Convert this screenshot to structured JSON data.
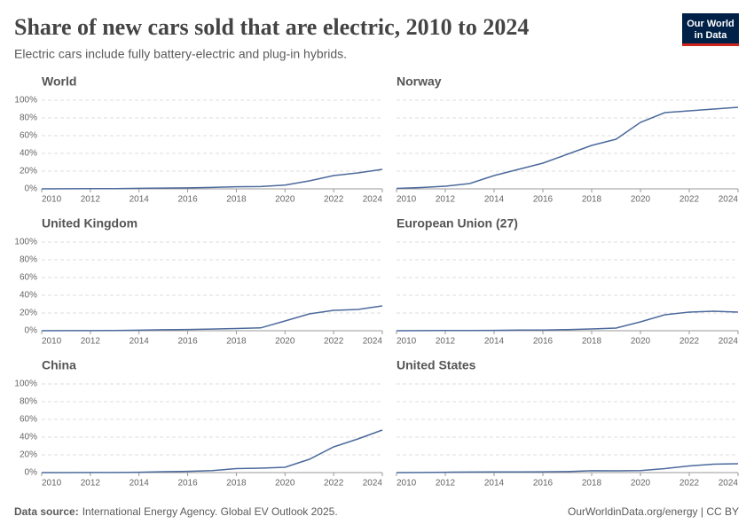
{
  "title": "Share of new cars sold that are electric, 2010 to 2024",
  "subtitle": "Electric cars include fully battery-electric and plug-in hybrids.",
  "logo": [
    "Our World",
    "in Data"
  ],
  "source_label": "Data source:",
  "source": "International Energy Agency. Global EV Outlook 2025.",
  "url": "OurWorldinData.org/energy | CC BY",
  "chart_data": [
    {
      "type": "line",
      "title": "World",
      "color": "#4c6a9c",
      "x": [
        2010,
        2011,
        2012,
        2013,
        2014,
        2015,
        2016,
        2017,
        2018,
        2019,
        2020,
        2021,
        2022,
        2023,
        2024
      ],
      "values": [
        0,
        0.1,
        0.2,
        0.3,
        0.6,
        0.9,
        1.1,
        1.6,
        2.4,
        2.6,
        4.2,
        9,
        15,
        18,
        22
      ],
      "xlim": [
        2010,
        2024
      ],
      "xticks": [
        2010,
        2012,
        2014,
        2016,
        2018,
        2020,
        2022,
        2024
      ],
      "ylim": [
        0,
        100
      ],
      "yticks": [
        {
          "value": 0,
          "label": "0%"
        },
        {
          "value": 20,
          "label": "20%"
        },
        {
          "value": 40,
          "label": "40%"
        },
        {
          "value": 60,
          "label": "60%"
        },
        {
          "value": 80,
          "label": "80%"
        },
        {
          "value": 100,
          "label": "100%"
        }
      ],
      "grid": true
    },
    {
      "type": "line",
      "title": "Norway",
      "color": "#4c6a9c",
      "x": [
        2010,
        2011,
        2012,
        2013,
        2014,
        2015,
        2016,
        2017,
        2018,
        2019,
        2020,
        2021,
        2022,
        2023,
        2024
      ],
      "values": [
        0.5,
        1.5,
        3,
        6,
        15,
        22,
        29,
        39,
        49,
        56,
        75,
        86,
        88,
        90,
        92
      ],
      "xlim": [
        2010,
        2024
      ],
      "xticks": [
        2010,
        2012,
        2014,
        2016,
        2018,
        2020,
        2022,
        2024
      ],
      "ylim": [
        0,
        100
      ],
      "yticks": [
        0,
        20,
        40,
        60,
        80,
        100
      ],
      "grid": true
    },
    {
      "type": "line",
      "title": "United Kingdom",
      "color": "#4c6a9c",
      "x": [
        2010,
        2011,
        2012,
        2013,
        2014,
        2015,
        2016,
        2017,
        2018,
        2019,
        2020,
        2021,
        2022,
        2023,
        2024
      ],
      "values": [
        0,
        0.1,
        0.1,
        0.2,
        0.6,
        1.1,
        1.4,
        1.9,
        2.5,
        3.2,
        11,
        19,
        23,
        24,
        28
      ],
      "xlim": [
        2010,
        2024
      ],
      "xticks": [
        2010,
        2012,
        2014,
        2016,
        2018,
        2020,
        2022,
        2024
      ],
      "ylim": [
        0,
        100
      ],
      "yticks": [
        {
          "value": 0,
          "label": "0%"
        },
        {
          "value": 20,
          "label": "20%"
        },
        {
          "value": 40,
          "label": "40%"
        },
        {
          "value": 60,
          "label": "60%"
        },
        {
          "value": 80,
          "label": "80%"
        },
        {
          "value": 100,
          "label": "100%"
        }
      ],
      "grid": true
    },
    {
      "type": "line",
      "title": "European Union (27)",
      "color": "#4c6a9c",
      "x": [
        2010,
        2011,
        2012,
        2013,
        2014,
        2015,
        2016,
        2017,
        2018,
        2019,
        2020,
        2021,
        2022,
        2023,
        2024
      ],
      "values": [
        0,
        0.1,
        0.2,
        0.3,
        0.4,
        0.7,
        0.8,
        1.3,
        2,
        3,
        10,
        18,
        21,
        22,
        21
      ],
      "xlim": [
        2010,
        2024
      ],
      "xticks": [
        2010,
        2012,
        2014,
        2016,
        2018,
        2020,
        2022,
        2024
      ],
      "ylim": [
        0,
        100
      ],
      "yticks": [
        0,
        20,
        40,
        60,
        80,
        100
      ],
      "grid": true
    },
    {
      "type": "line",
      "title": "China",
      "color": "#4c6a9c",
      "x": [
        2010,
        2011,
        2012,
        2013,
        2014,
        2015,
        2016,
        2017,
        2018,
        2019,
        2020,
        2021,
        2022,
        2023,
        2024
      ],
      "values": [
        0,
        0,
        0.1,
        0.1,
        0.4,
        1,
        1.4,
        2.2,
        4.5,
        5,
        6,
        15,
        29,
        38,
        48
      ],
      "xlim": [
        2010,
        2024
      ],
      "xticks": [
        2010,
        2012,
        2014,
        2016,
        2018,
        2020,
        2022,
        2024
      ],
      "ylim": [
        0,
        100
      ],
      "yticks": [
        {
          "value": 0,
          "label": "0%"
        },
        {
          "value": 20,
          "label": "20%"
        },
        {
          "value": 40,
          "label": "40%"
        },
        {
          "value": 60,
          "label": "60%"
        },
        {
          "value": 80,
          "label": "80%"
        },
        {
          "value": 100,
          "label": "100%"
        }
      ],
      "grid": true
    },
    {
      "type": "line",
      "title": "United States",
      "color": "#4c6a9c",
      "x": [
        2010,
        2011,
        2012,
        2013,
        2014,
        2015,
        2016,
        2017,
        2018,
        2019,
        2020,
        2021,
        2022,
        2023,
        2024
      ],
      "values": [
        0,
        0.1,
        0.4,
        0.6,
        0.7,
        0.7,
        0.9,
        1.1,
        2.1,
        2,
        2.2,
        4.5,
        7.5,
        9.5,
        10
      ],
      "xlim": [
        2010,
        2024
      ],
      "xticks": [
        2010,
        2012,
        2014,
        2016,
        2018,
        2020,
        2022,
        2024
      ],
      "ylim": [
        0,
        100
      ],
      "yticks": [
        0,
        20,
        40,
        60,
        80,
        100
      ],
      "grid": true
    }
  ]
}
